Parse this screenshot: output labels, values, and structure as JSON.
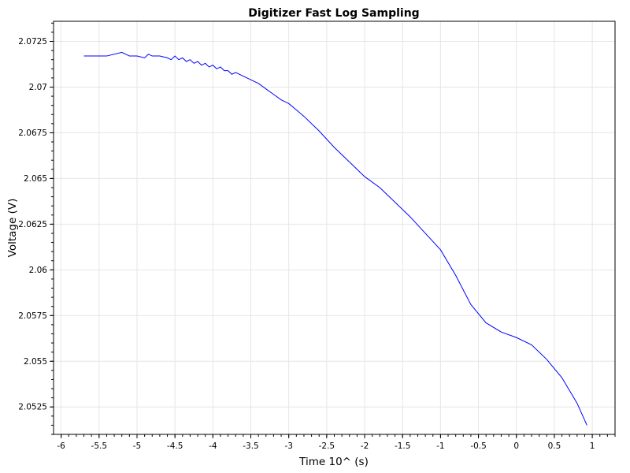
{
  "chart_data": {
    "type": "line",
    "title": "Digitizer Fast Log Sampling",
    "xlabel": "Time 10^ (s)",
    "ylabel": "Voltage (V)",
    "xlim": [
      -6.1,
      1.3
    ],
    "ylim": [
      2.051,
      2.0736
    ],
    "x_ticks": [
      -6,
      -5.5,
      -5,
      -4.5,
      -4,
      -3.5,
      -3,
      -2.5,
      -2,
      -1.5,
      -1,
      -0.5,
      0,
      0.5,
      1
    ],
    "x_tick_labels": [
      "-6",
      "-5.5",
      "-5",
      "-4.5",
      "-4",
      "-3.5",
      "-3",
      "-2.5",
      "-2",
      "-1.5",
      "-1",
      "-0.5",
      "0",
      "0.5",
      "1"
    ],
    "y_ticks": [
      2.0525,
      2.055,
      2.0575,
      2.06,
      2.0625,
      2.065,
      2.0675,
      2.07,
      2.0725
    ],
    "y_tick_labels": [
      "2.0525",
      "2.055",
      "2.0575",
      "2.06",
      "2.0625",
      "2.065",
      "2.0675",
      "2.07",
      "2.0725"
    ],
    "grid": true,
    "line_color": "#0000ff",
    "series": [
      {
        "x": [
          -5.7,
          -5.4,
          -5.2,
          -5.1,
          -5.0,
          -4.9,
          -4.85,
          -4.8,
          -4.7,
          -4.6,
          -4.55,
          -4.5,
          -4.45,
          -4.4,
          -4.35,
          -4.3,
          -4.25,
          -4.2,
          -4.15,
          -4.1,
          -4.05,
          -4.0,
          -3.95,
          -3.9,
          -3.85,
          -3.8,
          -3.75,
          -3.7,
          -3.6,
          -3.5,
          -3.4,
          -3.3,
          -3.2,
          -3.1,
          -3.0,
          -2.8,
          -2.6,
          -2.4,
          -2.2,
          -2.0,
          -1.8,
          -1.6,
          -1.4,
          -1.2,
          -1.0,
          -0.8,
          -0.6,
          -0.4,
          -0.2,
          0.0,
          0.2,
          0.4,
          0.6,
          0.8,
          0.93
        ],
        "y": [
          2.0717,
          2.0717,
          2.0719,
          2.0717,
          2.0717,
          2.0716,
          2.0718,
          2.0717,
          2.0717,
          2.0716,
          2.0715,
          2.0717,
          2.0715,
          2.0716,
          2.0714,
          2.0715,
          2.0713,
          2.0714,
          2.0712,
          2.0713,
          2.0711,
          2.0712,
          2.071,
          2.0711,
          2.0709,
          2.0709,
          2.0707,
          2.0708,
          2.0706,
          2.0704,
          2.0702,
          2.0699,
          2.0696,
          2.0693,
          2.0691,
          2.0684,
          2.0676,
          2.0667,
          2.0659,
          2.0651,
          2.0645,
          2.0637,
          2.0629,
          2.062,
          2.0611,
          2.0597,
          2.0581,
          2.0571,
          2.0566,
          2.0563,
          2.0559,
          2.0551,
          2.0541,
          2.0527,
          2.0515
        ]
      }
    ]
  }
}
